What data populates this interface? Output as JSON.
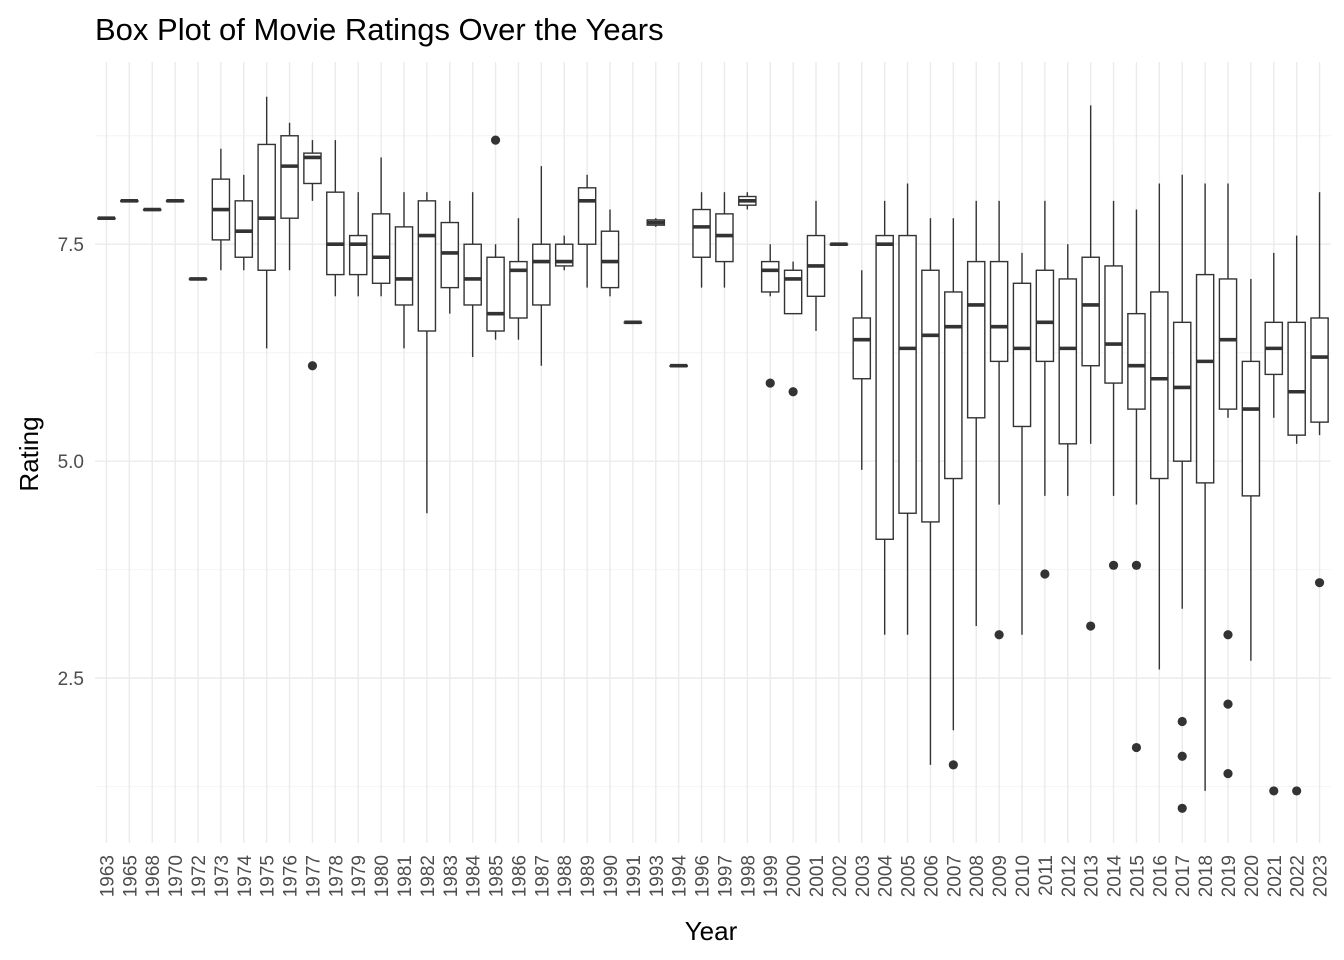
{
  "chart_data": {
    "type": "box",
    "title": "Box Plot of Movie Ratings Over the Years",
    "xlabel": "Year",
    "ylabel": "Rating",
    "ylim": [
      0.6,
      9.6
    ],
    "yticks": [
      2.5,
      5.0,
      7.5
    ],
    "ytick_labels": [
      "2.5",
      "5.0",
      "7.5"
    ],
    "grid": true,
    "colors": {
      "box_stroke": "#333333",
      "box_fill": "#ffffff",
      "grid": "#ebebeb",
      "tick_text": "#4d4d4d"
    },
    "boxes": [
      {
        "year": "1963",
        "lo": 7.8,
        "q1": 7.8,
        "med": 7.8,
        "q3": 7.8,
        "hi": 7.8,
        "outliers": []
      },
      {
        "year": "1965",
        "lo": 8.0,
        "q1": 8.0,
        "med": 8.0,
        "q3": 8.0,
        "hi": 8.0,
        "outliers": []
      },
      {
        "year": "1968",
        "lo": 7.9,
        "q1": 7.9,
        "med": 7.9,
        "q3": 7.9,
        "hi": 7.9,
        "outliers": []
      },
      {
        "year": "1970",
        "lo": 8.0,
        "q1": 8.0,
        "med": 8.0,
        "q3": 8.0,
        "hi": 8.0,
        "outliers": []
      },
      {
        "year": "1972",
        "lo": 7.1,
        "q1": 7.1,
        "med": 7.1,
        "q3": 7.1,
        "hi": 7.1,
        "outliers": []
      },
      {
        "year": "1973",
        "lo": 7.2,
        "q1": 7.55,
        "med": 7.9,
        "q3": 8.25,
        "hi": 8.6,
        "outliers": []
      },
      {
        "year": "1974",
        "lo": 7.2,
        "q1": 7.35,
        "med": 7.65,
        "q3": 8.0,
        "hi": 8.3,
        "outliers": []
      },
      {
        "year": "1975",
        "lo": 6.3,
        "q1": 7.2,
        "med": 7.8,
        "q3": 8.65,
        "hi": 9.2,
        "outliers": []
      },
      {
        "year": "1976",
        "lo": 7.2,
        "q1": 7.8,
        "med": 8.4,
        "q3": 8.75,
        "hi": 8.9,
        "outliers": []
      },
      {
        "year": "1977",
        "lo": 8.0,
        "q1": 8.2,
        "med": 8.5,
        "q3": 8.55,
        "hi": 8.7,
        "outliers": [
          6.1
        ]
      },
      {
        "year": "1978",
        "lo": 6.9,
        "q1": 7.15,
        "med": 7.5,
        "q3": 8.1,
        "hi": 8.7,
        "outliers": []
      },
      {
        "year": "1979",
        "lo": 6.9,
        "q1": 7.15,
        "med": 7.5,
        "q3": 7.6,
        "hi": 8.1,
        "outliers": []
      },
      {
        "year": "1980",
        "lo": 6.9,
        "q1": 7.05,
        "med": 7.35,
        "q3": 7.85,
        "hi": 8.5,
        "outliers": []
      },
      {
        "year": "1981",
        "lo": 6.3,
        "q1": 6.8,
        "med": 7.1,
        "q3": 7.7,
        "hi": 8.1,
        "outliers": []
      },
      {
        "year": "1982",
        "lo": 4.4,
        "q1": 6.5,
        "med": 7.6,
        "q3": 8.0,
        "hi": 8.1,
        "outliers": []
      },
      {
        "year": "1983",
        "lo": 6.7,
        "q1": 7.0,
        "med": 7.4,
        "q3": 7.75,
        "hi": 8.0,
        "outliers": []
      },
      {
        "year": "1984",
        "lo": 6.2,
        "q1": 6.8,
        "med": 7.1,
        "q3": 7.5,
        "hi": 8.1,
        "outliers": []
      },
      {
        "year": "1985",
        "lo": 6.4,
        "q1": 6.5,
        "med": 6.7,
        "q3": 7.35,
        "hi": 7.5,
        "outliers": [
          8.7
        ]
      },
      {
        "year": "1986",
        "lo": 6.4,
        "q1": 6.65,
        "med": 7.2,
        "q3": 7.3,
        "hi": 7.8,
        "outliers": []
      },
      {
        "year": "1987",
        "lo": 6.1,
        "q1": 6.8,
        "med": 7.3,
        "q3": 7.5,
        "hi": 8.4,
        "outliers": []
      },
      {
        "year": "1988",
        "lo": 7.2,
        "q1": 7.25,
        "med": 7.3,
        "q3": 7.5,
        "hi": 7.6,
        "outliers": []
      },
      {
        "year": "1989",
        "lo": 7.0,
        "q1": 7.5,
        "med": 8.0,
        "q3": 8.15,
        "hi": 8.3,
        "outliers": []
      },
      {
        "year": "1990",
        "lo": 6.9,
        "q1": 7.0,
        "med": 7.3,
        "q3": 7.65,
        "hi": 7.9,
        "outliers": []
      },
      {
        "year": "1991",
        "lo": 6.6,
        "q1": 6.6,
        "med": 6.6,
        "q3": 6.6,
        "hi": 6.6,
        "outliers": []
      },
      {
        "year": "1993",
        "lo": 7.7,
        "q1": 7.72,
        "med": 7.75,
        "q3": 7.78,
        "hi": 7.8,
        "outliers": []
      },
      {
        "year": "1994",
        "lo": 6.1,
        "q1": 6.1,
        "med": 6.1,
        "q3": 6.1,
        "hi": 6.1,
        "outliers": []
      },
      {
        "year": "1996",
        "lo": 7.0,
        "q1": 7.35,
        "med": 7.7,
        "q3": 7.9,
        "hi": 8.1,
        "outliers": []
      },
      {
        "year": "1997",
        "lo": 7.0,
        "q1": 7.3,
        "med": 7.6,
        "q3": 7.85,
        "hi": 8.1,
        "outliers": []
      },
      {
        "year": "1998",
        "lo": 7.9,
        "q1": 7.95,
        "med": 8.0,
        "q3": 8.05,
        "hi": 8.1,
        "outliers": []
      },
      {
        "year": "1999",
        "lo": 6.9,
        "q1": 6.95,
        "med": 7.2,
        "q3": 7.3,
        "hi": 7.5,
        "outliers": [
          5.9
        ]
      },
      {
        "year": "2000",
        "lo": 6.7,
        "q1": 6.7,
        "med": 7.1,
        "q3": 7.2,
        "hi": 7.3,
        "outliers": [
          5.8
        ]
      },
      {
        "year": "2001",
        "lo": 6.5,
        "q1": 6.9,
        "med": 7.25,
        "q3": 7.6,
        "hi": 8.0,
        "outliers": []
      },
      {
        "year": "2002",
        "lo": 7.5,
        "q1": 7.5,
        "med": 7.5,
        "q3": 7.5,
        "hi": 7.5,
        "outliers": []
      },
      {
        "year": "2003",
        "lo": 4.9,
        "q1": 5.95,
        "med": 6.4,
        "q3": 6.65,
        "hi": 7.2,
        "outliers": []
      },
      {
        "year": "2004",
        "lo": 3.0,
        "q1": 4.1,
        "med": 7.5,
        "q3": 7.6,
        "hi": 8.0,
        "outliers": []
      },
      {
        "year": "2005",
        "lo": 3.0,
        "q1": 4.4,
        "med": 6.3,
        "q3": 7.6,
        "hi": 8.2,
        "outliers": []
      },
      {
        "year": "2006",
        "lo": 1.5,
        "q1": 4.3,
        "med": 6.45,
        "q3": 7.2,
        "hi": 7.8,
        "outliers": []
      },
      {
        "year": "2007",
        "lo": 1.9,
        "q1": 4.8,
        "med": 6.55,
        "q3": 6.95,
        "hi": 7.8,
        "outliers": [
          1.5
        ]
      },
      {
        "year": "2008",
        "lo": 3.1,
        "q1": 5.5,
        "med": 6.8,
        "q3": 7.3,
        "hi": 8.0,
        "outliers": []
      },
      {
        "year": "2009",
        "lo": 4.5,
        "q1": 6.15,
        "med": 6.55,
        "q3": 7.3,
        "hi": 8.0,
        "outliers": [
          3.0
        ]
      },
      {
        "year": "2010",
        "lo": 3.0,
        "q1": 5.4,
        "med": 6.3,
        "q3": 7.05,
        "hi": 7.4,
        "outliers": []
      },
      {
        "year": "2011",
        "lo": 4.6,
        "q1": 6.15,
        "med": 6.6,
        "q3": 7.2,
        "hi": 8.0,
        "outliers": [
          3.7
        ]
      },
      {
        "year": "2012",
        "lo": 4.6,
        "q1": 5.2,
        "med": 6.3,
        "q3": 7.1,
        "hi": 7.5,
        "outliers": []
      },
      {
        "year": "2013",
        "lo": 5.2,
        "q1": 6.1,
        "med": 6.8,
        "q3": 7.35,
        "hi": 9.1,
        "outliers": [
          3.1
        ]
      },
      {
        "year": "2014",
        "lo": 4.6,
        "q1": 5.9,
        "med": 6.35,
        "q3": 7.25,
        "hi": 8.0,
        "outliers": [
          3.8
        ]
      },
      {
        "year": "2015",
        "lo": 4.5,
        "q1": 5.6,
        "med": 6.1,
        "q3": 6.7,
        "hi": 7.9,
        "outliers": [
          3.8,
          1.7
        ]
      },
      {
        "year": "2016",
        "lo": 2.6,
        "q1": 4.8,
        "med": 5.95,
        "q3": 6.95,
        "hi": 8.2,
        "outliers": []
      },
      {
        "year": "2017",
        "lo": 3.3,
        "q1": 5.0,
        "med": 5.85,
        "q3": 6.6,
        "hi": 8.3,
        "outliers": [
          2.0,
          1.6,
          1.0
        ]
      },
      {
        "year": "2018",
        "lo": 1.2,
        "q1": 4.75,
        "med": 6.15,
        "q3": 7.15,
        "hi": 8.2,
        "outliers": []
      },
      {
        "year": "2019",
        "lo": 5.5,
        "q1": 5.6,
        "med": 6.4,
        "q3": 7.1,
        "hi": 8.2,
        "outliers": [
          3.0,
          2.2,
          1.4
        ]
      },
      {
        "year": "2020",
        "lo": 2.7,
        "q1": 4.6,
        "med": 5.6,
        "q3": 6.15,
        "hi": 7.1,
        "outliers": []
      },
      {
        "year": "2021",
        "lo": 5.5,
        "q1": 6.0,
        "med": 6.3,
        "q3": 6.6,
        "hi": 7.4,
        "outliers": [
          1.2
        ]
      },
      {
        "year": "2022",
        "lo": 5.2,
        "q1": 5.3,
        "med": 5.8,
        "q3": 6.6,
        "hi": 7.6,
        "outliers": [
          1.2
        ]
      },
      {
        "year": "2023",
        "lo": 5.3,
        "q1": 5.45,
        "med": 6.2,
        "q3": 6.65,
        "hi": 8.1,
        "outliers": [
          3.6
        ]
      }
    ]
  }
}
